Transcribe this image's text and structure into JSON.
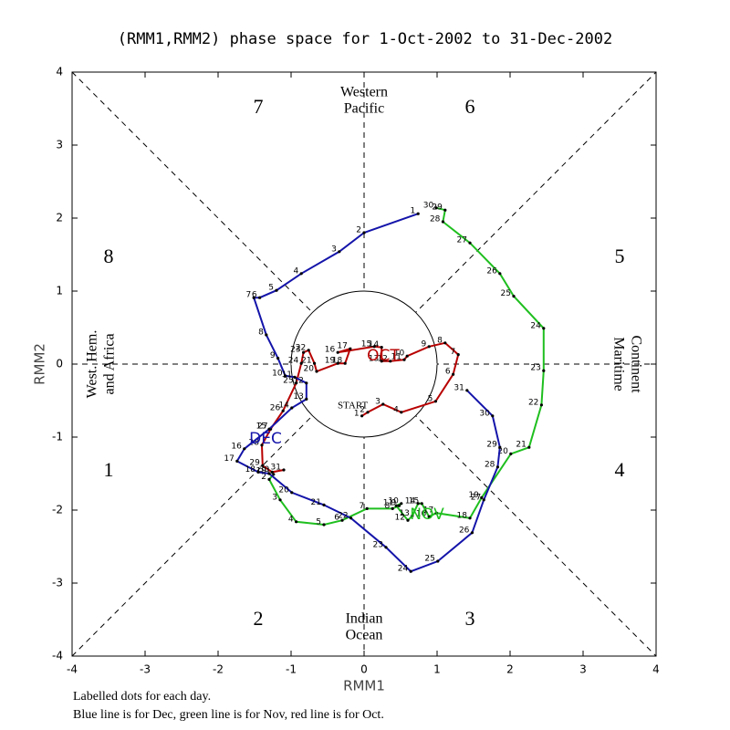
{
  "chart_data": {
    "type": "line",
    "title": "(RMM1,RMM2) phase space for  1-Oct-2002 to 31-Dec-2002",
    "xlabel": "RMM1",
    "ylabel": "RMM2",
    "xlim": [
      -4,
      4
    ],
    "ylim": [
      -4,
      4
    ],
    "xticks": [
      -4,
      -3,
      -2,
      -1,
      0,
      1,
      2,
      3,
      4
    ],
    "yticks": [
      -4,
      -3,
      -2,
      -1,
      0,
      1,
      2,
      3,
      4
    ],
    "start_label": "START",
    "phase_labels": [
      1,
      2,
      3,
      4,
      5,
      6,
      7,
      8
    ],
    "region_labels": {
      "top": [
        "Western",
        "Pacific"
      ],
      "bottom": [
        "Indian",
        "Ocean"
      ],
      "left": [
        "West. Hem.",
        "and Africa"
      ],
      "right": [
        "Maritime",
        "Continent"
      ]
    },
    "notes": [
      "Labelled dots for each day.",
      "Blue line is for Dec, green line is for Nov, red line is for Oct."
    ],
    "series": [
      {
        "name": "OCT",
        "color": "#b80000",
        "days": [
          1,
          2,
          3,
          4,
          5,
          6,
          7,
          8,
          9,
          10,
          11,
          12,
          13,
          14,
          15,
          16,
          17,
          18,
          19,
          20,
          21,
          22,
          23,
          24,
          25,
          26,
          27,
          28,
          29,
          30,
          31
        ],
        "x": [
          -0.03,
          0.05,
          0.26,
          0.51,
          0.98,
          1.22,
          1.29,
          1.11,
          0.89,
          0.59,
          0.55,
          0.36,
          0.24,
          0.24,
          0.14,
          -0.36,
          -0.19,
          -0.26,
          -0.36,
          -0.65,
          -0.68,
          -0.76,
          -0.83,
          -0.86,
          -0.93,
          -1.11,
          -1.28,
          -1.4,
          -1.39,
          -1.26,
          -1.1
        ],
        "values": [
          -0.71,
          -0.66,
          -0.55,
          -0.66,
          -0.51,
          -0.14,
          0.13,
          0.29,
          0.24,
          0.11,
          0.06,
          0.04,
          0.04,
          0.23,
          0.24,
          0.16,
          0.21,
          0.01,
          0.01,
          -0.1,
          0.01,
          0.19,
          0.16,
          0.01,
          -0.26,
          -0.64,
          -0.89,
          -1.11,
          -1.39,
          -1.48,
          -1.45
        ]
      },
      {
        "name": "NOV",
        "color": "#1fbf1f",
        "days": [
          1,
          2,
          3,
          4,
          5,
          6,
          7,
          8,
          9,
          10,
          11,
          12,
          13,
          14,
          15,
          16,
          17,
          18,
          19,
          20,
          21,
          22,
          23,
          24,
          25,
          26,
          27,
          28,
          29,
          30
        ],
        "x": [
          -1.24,
          -1.3,
          -1.15,
          -0.93,
          -0.55,
          -0.3,
          0.04,
          0.39,
          0.48,
          0.51,
          0.44,
          0.6,
          0.66,
          0.74,
          0.79,
          0.89,
          0.99,
          1.45,
          1.61,
          2.01,
          2.26,
          2.43,
          2.46,
          2.46,
          2.05,
          1.86,
          1.45,
          1.08,
          1.11,
          0.99
        ],
        "values": [
          -1.51,
          -1.58,
          -1.86,
          -2.16,
          -2.2,
          -2.14,
          -1.98,
          -1.98,
          -1.94,
          -1.91,
          -1.94,
          -2.14,
          -2.08,
          -1.91,
          -1.91,
          -2.09,
          -2.04,
          -2.11,
          -1.83,
          -1.23,
          -1.14,
          -0.56,
          -0.09,
          0.49,
          0.93,
          1.24,
          1.66,
          1.95,
          2.11,
          2.14
        ]
      },
      {
        "name": "DEC",
        "color": "#1414aa",
        "days": [
          1,
          2,
          3,
          4,
          5,
          6,
          7,
          8,
          9,
          10,
          11,
          12,
          13,
          14,
          15,
          16,
          17,
          18,
          19,
          20,
          21,
          22,
          23,
          24,
          25,
          26,
          27,
          28,
          29,
          30,
          31
        ],
        "x": [
          0.74,
          0,
          -0.34,
          -0.86,
          -1.2,
          -1.43,
          -1.51,
          -1.34,
          -1.18,
          -1.08,
          -0.95,
          -0.79,
          -0.79,
          -0.99,
          -1.3,
          -1.64,
          -1.74,
          -1.45,
          -1.3,
          -0.99,
          -0.55,
          -0.18,
          0.3,
          0.64,
          1.01,
          1.48,
          1.64,
          1.83,
          1.86,
          1.76,
          1.41
        ],
        "values": [
          2.06,
          1.8,
          1.54,
          1.24,
          1.01,
          0.91,
          0.91,
          0.4,
          0.08,
          -0.16,
          -0.18,
          -0.26,
          -0.48,
          -0.6,
          -0.89,
          -1.16,
          -1.33,
          -1.48,
          -1.5,
          -1.76,
          -1.93,
          -2.11,
          -2.51,
          -2.84,
          -2.7,
          -2.31,
          -1.86,
          -1.41,
          -1.14,
          -0.71,
          -0.36
        ]
      }
    ]
  }
}
